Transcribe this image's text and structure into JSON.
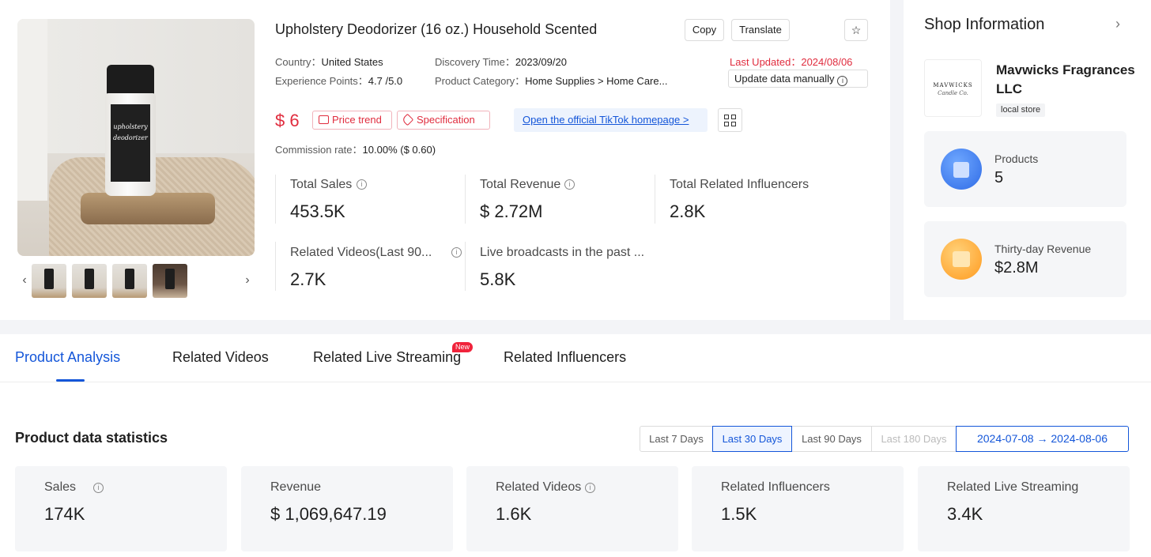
{
  "product": {
    "title": "Upholstery Deodorizer (16 oz.) Household Scented",
    "jar_label": "upholstery deodorizer",
    "copy_label": "Copy",
    "translate_label": "Translate",
    "star_icon": "☆",
    "country_label": "Country：",
    "country": "United States",
    "discovery_label": "Discovery Time：",
    "discovery": "2023/09/20",
    "updated_label": "Last Updated：",
    "updated": "2024/08/06",
    "xp_label": "Experience Points：",
    "xp": "4.7 /5.0",
    "category_label": "Product Category：",
    "category": "Home Supplies > Home Care...",
    "update_button": "Update data manually",
    "price": "$ 6",
    "price_trend": "Price trend",
    "specification": "Specification",
    "official_link": "Open the official TikTok homepage  >",
    "commission_label": "Commission rate：",
    "commission": "10.00% ($ 0.60)",
    "prev_icon": "‹",
    "next_icon": "›"
  },
  "stats": {
    "total_sales_label": "Total Sales",
    "total_sales": "453.5K",
    "total_revenue_label": "Total Revenue",
    "total_revenue": "$ 2.72M",
    "influencers_label": "Total Related Influencers",
    "influencers": "2.8K",
    "videos_label": "Related Videos(Last 90...",
    "videos": "2.7K",
    "live_label": "Live broadcasts in the past ...",
    "live": "5.8K"
  },
  "shop": {
    "title": "Shop Information",
    "chevron": "›",
    "logo_text": "MAVWICKS",
    "logo_sub": "Candle Co.",
    "name": "Mavwicks Fragrances LLC",
    "badge": "local store",
    "products_label": "Products",
    "products": "5",
    "revenue_label": "Thirty-day Revenue",
    "revenue": "$2.8M"
  },
  "tabs": {
    "items": [
      "Product Analysis",
      "Related Videos",
      "Related Live Streaming",
      "Related Influencers"
    ],
    "new_badge": "New"
  },
  "statistics": {
    "title": "Product data statistics",
    "ranges": [
      "Last 7 Days",
      "Last 30 Days",
      "Last 90 Days",
      "Last 180 Days"
    ],
    "date_range": "2024-07-08    →    2024-08-06",
    "kpis": [
      {
        "label": "Sales",
        "value": "174K"
      },
      {
        "label": "Revenue",
        "value": "$ 1,069,647.19"
      },
      {
        "label": "Related Videos",
        "value": "1.6K"
      },
      {
        "label": "Related Influencers",
        "value": "1.5K"
      },
      {
        "label": "Related Live Streaming",
        "value": "3.4K"
      }
    ]
  },
  "colors": {
    "accent": "#1456d9",
    "price_red": "#e02c3e",
    "panel_bg": "#f3f4f7"
  }
}
